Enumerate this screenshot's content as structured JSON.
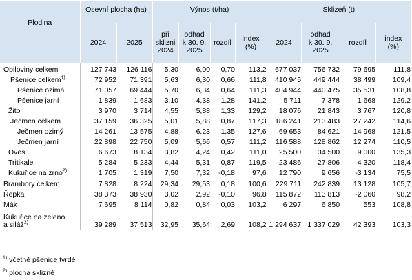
{
  "header": {
    "plodina": "Plodina",
    "osevni_plocha": "Osevní plocha (ha)",
    "vynos": "Výnos (t/ha)",
    "sklizen": "Sklizeň (t)",
    "cols": {
      "area_2024": "2024",
      "area_2025": "2025",
      "yield_2024_l1": "při",
      "yield_2024_l2": "sklizni",
      "yield_2024_l3": "2024",
      "yield_2025_l1": "odhad",
      "yield_2025_l2": "k 30. 9.",
      "yield_2025_l3": "2025",
      "yield_diff": "rozdíl",
      "yield_index_l1": "index",
      "yield_index_l2": "(%)",
      "harv_2024": "2024",
      "harv_2025_l1": "odhad",
      "harv_2025_l2": "k 30. 9.",
      "harv_2025_l3": "2025",
      "harv_diff": "rozdíl",
      "harv_index_l1": "index",
      "harv_index_l2": "(%)"
    }
  },
  "rows": [
    {
      "name": "Obiloviny celkem",
      "sup": "",
      "a24": "127 743",
      "a25": "126 116",
      "y24": "5,30",
      "y25": "6,00",
      "yd": "0,70",
      "yi": "113,2",
      "h24": "677 037",
      "h25": "756 732",
      "hd": "79 695",
      "hi": "111,8"
    },
    {
      "name": "Pšenice celkem",
      "sup": "1)",
      "a24": "72 952",
      "a25": "71 391",
      "y24": "5,63",
      "y25": "6,30",
      "yd": "0,66",
      "yi": "111,8",
      "h24": "410 945",
      "h25": "449 444",
      "hd": "38 499",
      "hi": "109,4"
    },
    {
      "name": "Pšenice ozimá",
      "sup": "",
      "a24": "71 057",
      "a25": "69 444",
      "y24": "5,70",
      "y25": "6,34",
      "yd": "0,64",
      "yi": "111,3",
      "h24": "404 944",
      "h25": "440 475",
      "hd": "35 531",
      "hi": "108,8"
    },
    {
      "name": "Pšenice jarní",
      "sup": "",
      "a24": "1 839",
      "a25": "1 683",
      "y24": "3,10",
      "y25": "4,38",
      "yd": "1,28",
      "yi": "141,2",
      "h24": "5 711",
      "h25": "7 378",
      "hd": "1 668",
      "hi": "129,2"
    },
    {
      "name": "Žito",
      "sup": "",
      "a24": "3 970",
      "a25": "3 714",
      "y24": "4,55",
      "y25": "5,88",
      "yd": "1,33",
      "yi": "129,2",
      "h24": "18 076",
      "h25": "21 843",
      "hd": "3 767",
      "hi": "120,8"
    },
    {
      "name": "Ječmen celkem",
      "sup": "",
      "a24": "37 159",
      "a25": "36 325",
      "y24": "5,01",
      "y25": "5,88",
      "yd": "0,87",
      "yi": "117,3",
      "h24": "186 241",
      "h25": "213 483",
      "hd": "27 242",
      "hi": "114,6"
    },
    {
      "name": "Ječmen ozimý",
      "sup": "",
      "a24": "14 261",
      "a25": "13 575",
      "y24": "4,88",
      "y25": "6,23",
      "yd": "1,35",
      "yi": "127,6",
      "h24": "69 653",
      "h25": "84 621",
      "hd": "14 968",
      "hi": "121,5"
    },
    {
      "name": "Ječmen jarní",
      "sup": "",
      "a24": "22 898",
      "a25": "22 750",
      "y24": "5,09",
      "y25": "5,66",
      "yd": "0,57",
      "yi": "111,2",
      "h24": "116 588",
      "h25": "128 862",
      "hd": "12 274",
      "hi": "110,5"
    },
    {
      "name": "Oves",
      "sup": "",
      "a24": "6 673",
      "a25": "8 134",
      "y24": "3,82",
      "y25": "4,24",
      "yd": "0,42",
      "yi": "111,0",
      "h24": "25 500",
      "h25": "34 500",
      "hd": "9 000",
      "hi": "135,3"
    },
    {
      "name": "Tritikale",
      "sup": "",
      "a24": "5 284",
      "a25": "5 233",
      "y24": "4,44",
      "y25": "5,31",
      "yd": "0,87",
      "yi": "119,5",
      "h24": "23 486",
      "h25": "27 806",
      "hd": "4 320",
      "hi": "118,4"
    },
    {
      "name": "Kukuřice na zrno",
      "sup": "2)",
      "a24": "1 705",
      "a25": "1 319",
      "y24": "7,50",
      "y25": "7,32",
      "yd": "-0,18",
      "yi": "97,6",
      "h24": "12 790",
      "h25": "9 656",
      "hd": "-3 134",
      "hi": "75,5"
    },
    {
      "name": "Brambory celkem",
      "sup": "",
      "a24": "7 828",
      "a25": "8 224",
      "y24": "29,34",
      "y25": "29,53",
      "yd": "0,18",
      "yi": "100,6",
      "h24": "229 711",
      "h25": "242 839",
      "hd": "13 128",
      "hi": "105,7"
    },
    {
      "name": "Řepka",
      "sup": "",
      "a24": "38 373",
      "a25": "38 930",
      "y24": "3,02",
      "y25": "2,92",
      "yd": "-0,10",
      "yi": "96,8",
      "h24": "115 872",
      "h25": "113 813",
      "hd": "-2 060",
      "hi": "98,2"
    },
    {
      "name": "Mák",
      "sup": "",
      "a24": "7 695",
      "a25": "8 114",
      "y24": "0,82",
      "y25": "0,84",
      "yd": "0,03",
      "yi": "103,2",
      "h24": "6 297",
      "h25": "6 850",
      "hd": "553",
      "hi": "108,8"
    },
    {
      "name_l1": "Kukuřice na zeleno",
      "name_l2": "a siláž",
      "sup": "2)",
      "a24": "39 289",
      "a25": "37 513",
      "y24": "32,95",
      "y25": "35,64",
      "yd": "2,69",
      "yi": "108,2",
      "h24": "1 294 637",
      "h25": "1 337 029",
      "hd": "42 393",
      "hi": "103,3"
    }
  ],
  "footnotes": {
    "n1_mark": "1)",
    "n1_text": " včetně pšenice tvrdé",
    "n2_mark": "2)",
    "n2_text": " plocha sklizně"
  }
}
